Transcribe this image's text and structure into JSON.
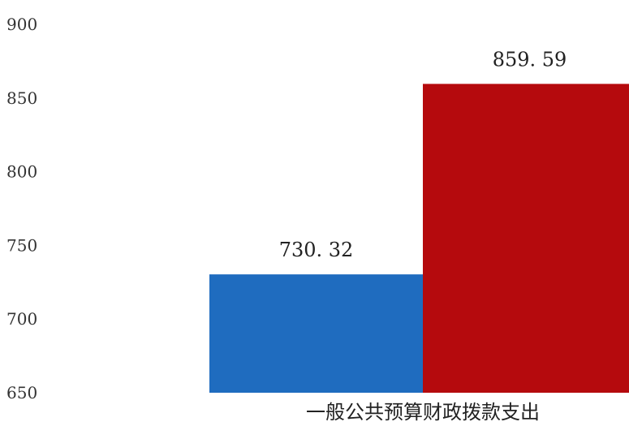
{
  "chart_data": {
    "type": "bar",
    "categories": [
      "一般公共预算财政拨款支出"
    ],
    "series": [
      {
        "values": [
          730.32
        ],
        "color": "#1f6cbf"
      },
      {
        "values": [
          859.59
        ],
        "color": "#b50a0d"
      }
    ],
    "data_labels": [
      "730. 32",
      "859. 59"
    ],
    "ylim": [
      650,
      900
    ],
    "yticks": [
      650,
      700,
      750,
      800,
      850,
      900
    ],
    "grid": false,
    "legend": "none"
  }
}
